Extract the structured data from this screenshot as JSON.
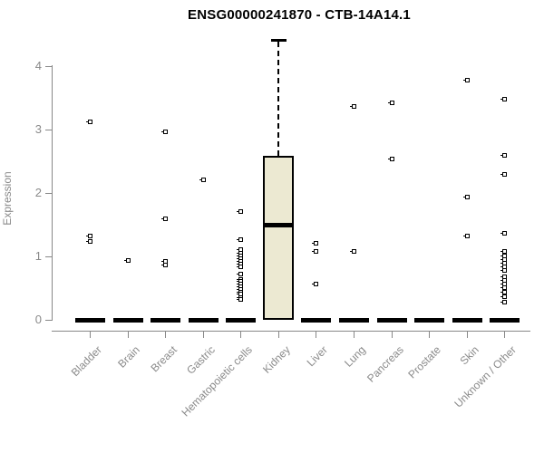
{
  "title": "ENSG00000241870 - CTB-14A14.1",
  "colors": {
    "box_fill": "#ECE9D2",
    "box_border": "#000000",
    "axis": "#888888",
    "tick_label": "#8a8a8a",
    "title": "#000000",
    "background": "#ffffff"
  },
  "chart_data": {
    "type": "boxplot",
    "title": "ENSG00000241870 - CTB-14A14.1",
    "xlabel": "",
    "ylabel": "Expression",
    "ylim": [
      0,
      4.45
    ],
    "yticks": [
      0,
      1,
      2,
      3,
      4
    ],
    "grid": false,
    "legend": "none",
    "categories": [
      "Bladder",
      "Brain",
      "Breast",
      "Gastric",
      "Hematopoietic cells",
      "Kidney",
      "Liver",
      "Lung",
      "Pancreas",
      "Prostate",
      "Skin",
      "Unknown / Other"
    ],
    "boxes": [
      {
        "label": "Bladder",
        "q1": 0,
        "median": 0,
        "q3": 0,
        "whisker_high": 0,
        "points": [
          3.13,
          1.33,
          1.24
        ]
      },
      {
        "label": "Brain",
        "q1": 0,
        "median": 0,
        "q3": 0,
        "whisker_high": 0,
        "points": [
          0.95
        ]
      },
      {
        "label": "Breast",
        "q1": 0,
        "median": 0,
        "q3": 0,
        "whisker_high": 0,
        "points": [
          2.97,
          1.6,
          0.93,
          0.87
        ]
      },
      {
        "label": "Gastric",
        "q1": 0,
        "median": 0,
        "q3": 0,
        "whisker_high": 0,
        "points": [
          2.21
        ]
      },
      {
        "label": "Hematopoietic cells",
        "q1": 0,
        "median": 0,
        "q3": 0,
        "whisker_high": 0,
        "points": [
          1.72,
          1.27,
          1.11,
          1.06,
          1.01,
          0.97,
          0.93,
          0.89,
          0.85,
          0.73,
          0.65,
          0.61,
          0.57,
          0.53,
          0.49,
          0.45,
          0.41,
          0.36,
          0.33
        ]
      },
      {
        "label": "Kidney",
        "q1": 0,
        "median": 1.5,
        "q3": 2.58,
        "whisker_high": 4.43,
        "points": []
      },
      {
        "label": "Liver",
        "q1": 0,
        "median": 0,
        "q3": 0,
        "whisker_high": 0,
        "points": [
          1.21,
          1.09,
          0.57
        ]
      },
      {
        "label": "Lung",
        "q1": 0,
        "median": 0,
        "q3": 0,
        "whisker_high": 0,
        "points": [
          3.37,
          1.09
        ]
      },
      {
        "label": "Pancreas",
        "q1": 0,
        "median": 0,
        "q3": 0,
        "whisker_high": 0,
        "points": [
          3.43,
          2.55
        ]
      },
      {
        "label": "Prostate",
        "q1": 0,
        "median": 0,
        "q3": 0,
        "whisker_high": 0,
        "points": []
      },
      {
        "label": "Skin",
        "q1": 0,
        "median": 0,
        "q3": 0,
        "whisker_high": 0,
        "points": [
          3.79,
          1.94,
          1.33
        ]
      },
      {
        "label": "Unknown / Other",
        "q1": 0,
        "median": 0,
        "q3": 0,
        "whisker_high": 0,
        "points": [
          3.48,
          2.6,
          2.3,
          1.37,
          1.08,
          1.02,
          0.96,
          0.9,
          0.84,
          0.78,
          0.69,
          0.63,
          0.57,
          0.51,
          0.45,
          0.37,
          0.29
        ]
      }
    ]
  }
}
